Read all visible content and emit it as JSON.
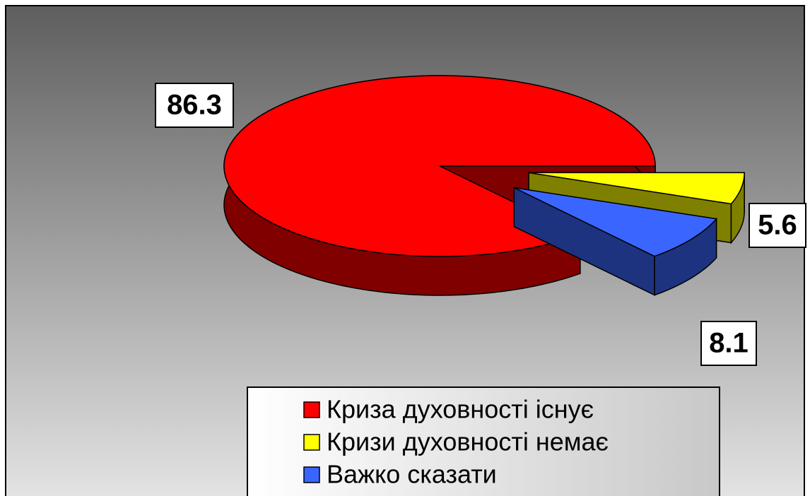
{
  "chart_data": {
    "type": "pie",
    "categories": [
      "Криза духовності існує",
      "Кризи духовності немає",
      "Важко сказати"
    ],
    "values": [
      86.3,
      5.6,
      8.1
    ],
    "colors": [
      "#ff0000",
      "#ffff00",
      "#3a66ff"
    ],
    "legend": "bottom"
  }
}
